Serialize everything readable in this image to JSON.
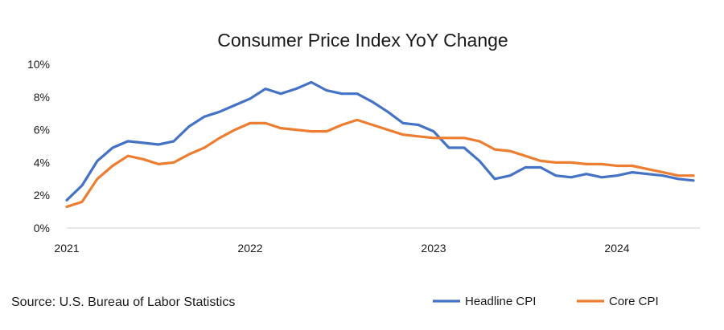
{
  "chart_data": {
    "type": "line",
    "title": "Consumer Price Index YoY Change",
    "xlabel": "",
    "ylabel": "",
    "x_ticks": [
      "2021",
      "2022",
      "2023",
      "2024"
    ],
    "y_ticks": [
      "0%",
      "2%",
      "4%",
      "6%",
      "8%",
      "10%"
    ],
    "ylim": [
      0,
      10
    ],
    "x_range": [
      "2021-01",
      "2024-06"
    ],
    "grid": false,
    "legend_position": "bottom-right",
    "x": [
      "2021-01",
      "2021-02",
      "2021-03",
      "2021-04",
      "2021-05",
      "2021-06",
      "2021-07",
      "2021-08",
      "2021-09",
      "2021-10",
      "2021-11",
      "2021-12",
      "2022-01",
      "2022-02",
      "2022-03",
      "2022-04",
      "2022-05",
      "2022-06",
      "2022-07",
      "2022-08",
      "2022-09",
      "2022-10",
      "2022-11",
      "2022-12",
      "2023-01",
      "2023-02",
      "2023-03",
      "2023-04",
      "2023-05",
      "2023-06",
      "2023-07",
      "2023-08",
      "2023-09",
      "2023-10",
      "2023-11",
      "2023-12",
      "2024-01",
      "2024-02",
      "2024-03",
      "2024-04",
      "2024-05",
      "2024-06"
    ],
    "series": [
      {
        "name": "Headline CPI",
        "color": "#4472C4",
        "values": [
          1.7,
          2.6,
          4.1,
          4.9,
          5.3,
          5.2,
          5.1,
          5.3,
          6.2,
          6.8,
          7.1,
          7.5,
          7.9,
          8.5,
          8.2,
          8.5,
          8.9,
          8.4,
          8.2,
          8.2,
          7.7,
          7.1,
          6.4,
          6.3,
          5.9,
          4.9,
          4.9,
          4.1,
          3.0,
          3.2,
          3.7,
          3.7,
          3.2,
          3.1,
          3.3,
          3.1,
          3.2,
          3.4,
          3.3,
          3.2,
          3.0,
          2.9
        ]
      },
      {
        "name": "Core CPI",
        "color": "#ED7D31",
        "values": [
          1.3,
          1.6,
          3.0,
          3.8,
          4.4,
          4.2,
          3.9,
          4.0,
          4.5,
          4.9,
          5.5,
          6.0,
          6.4,
          6.4,
          6.1,
          6.0,
          5.9,
          5.9,
          6.3,
          6.6,
          6.3,
          6.0,
          5.7,
          5.6,
          5.5,
          5.5,
          5.5,
          5.3,
          4.8,
          4.7,
          4.4,
          4.1,
          4.0,
          4.0,
          3.9,
          3.9,
          3.8,
          3.8,
          3.6,
          3.4,
          3.2,
          3.2
        ]
      }
    ]
  },
  "source_note": "Source: U.S. Bureau of Labor Statistics"
}
